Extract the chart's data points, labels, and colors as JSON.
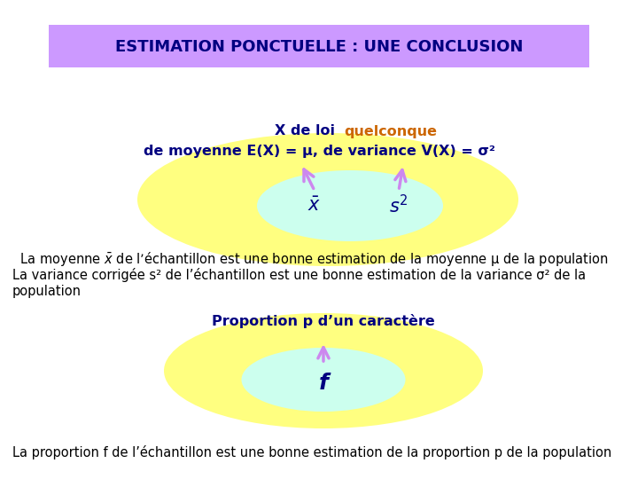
{
  "bg_color": "#ffffff",
  "title_text": "ESTIMATION PONCTUELLE : UNE CONCLUSION",
  "title_bg": "#cc99ff",
  "title_color": "#000080",
  "title_fontsize": 13,
  "outer_color": "#ffff80",
  "inner_color": "#ccffee",
  "text_dark": "#000080",
  "text_orange": "#cc6600",
  "text_black": "#000000",
  "arrow_color": "#cc88ee",
  "top_line1_normal": "X de loi ",
  "top_line1_colored": "quelconque",
  "top_line2": "de moyenne E(X) = μ, de variance V(X) = σ²",
  "xbar_label": "$\\bar{x}$",
  "s2_label": "$s^2$",
  "body1": " La moyenne $\\bar{x}$ de l’échantillon est une bonne estimation de la moyenne μ de la population",
  "body2": "La variance corrigée s² de l’échantillon est une bonne estimation de la variance σ² de la",
  "body3": "population",
  "proportion_text": "Proportion p d’un caractère",
  "f_label": "f",
  "body4": "La proportion f de l’échantillon est une bonne estimation de la proportion p de la population",
  "body_fontsize": 10.5,
  "label_fontsize": 15,
  "ellipse_text_fontsize": 11.5
}
